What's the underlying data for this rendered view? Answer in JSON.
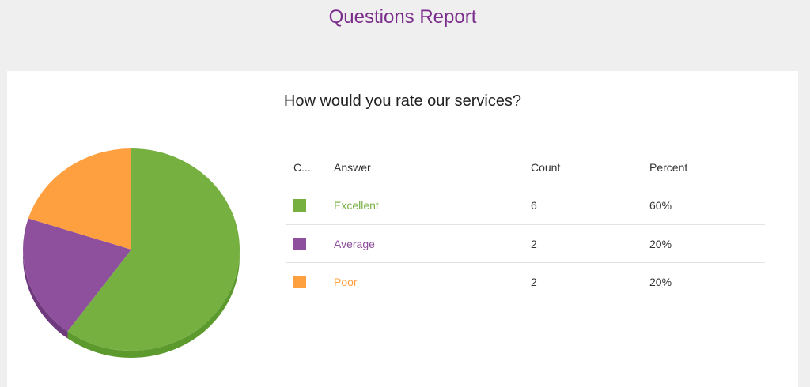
{
  "page": {
    "title": "Questions Report"
  },
  "question": {
    "text": "How would you rate our services?"
  },
  "table": {
    "headers": {
      "color": "C...",
      "answer": "Answer",
      "count": "Count",
      "percent": "Percent"
    },
    "rows": [
      {
        "answer": "Excellent",
        "count": "6",
        "percent": "60%",
        "color": "#76b041"
      },
      {
        "answer": "Average",
        "count": "2",
        "percent": "20%",
        "color": "#8e4f9c"
      },
      {
        "answer": "Poor",
        "count": "2",
        "percent": "20%",
        "color": "#ffa040"
      }
    ]
  },
  "chart_data": {
    "type": "pie",
    "title": "",
    "categories": [
      "Excellent",
      "Average",
      "Poor"
    ],
    "values": [
      6,
      2,
      2
    ],
    "percents": [
      60,
      20,
      20
    ],
    "colors": [
      "#76b041",
      "#8e4f9c",
      "#ffa040"
    ],
    "shade_colors": [
      "#5c9a2e",
      "#6f3a7d",
      "#d9822c"
    ],
    "start_angle_deg": 0,
    "three_d": true,
    "legend": "none"
  }
}
